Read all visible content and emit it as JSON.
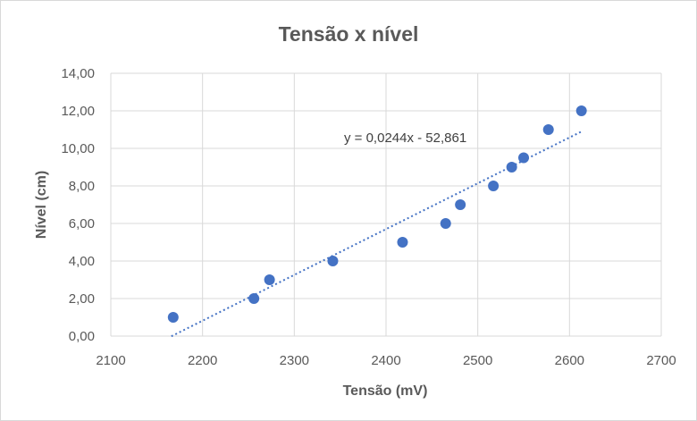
{
  "chart_data": {
    "type": "scatter",
    "title": "Tensão x nível",
    "xlabel": "Tensão (mV)",
    "ylabel": "Nível (cm)",
    "xlim": [
      2100,
      2700
    ],
    "ylim": [
      0,
      14
    ],
    "x_ticks": [
      "2100",
      "2200",
      "2300",
      "2400",
      "2500",
      "2600",
      "2700"
    ],
    "y_ticks": [
      "0,00",
      "2,00",
      "4,00",
      "6,00",
      "8,00",
      "10,00",
      "12,00",
      "14,00"
    ],
    "grid": true,
    "marker_color": "#4472c4",
    "points": [
      {
        "x": 2168,
        "y": 1
      },
      {
        "x": 2256,
        "y": 2
      },
      {
        "x": 2273,
        "y": 3
      },
      {
        "x": 2342,
        "y": 4
      },
      {
        "x": 2418,
        "y": 5
      },
      {
        "x": 2465,
        "y": 6
      },
      {
        "x": 2481,
        "y": 7
      },
      {
        "x": 2517,
        "y": 8
      },
      {
        "x": 2537,
        "y": 9
      },
      {
        "x": 2550,
        "y": 9.5
      },
      {
        "x": 2577,
        "y": 11
      },
      {
        "x": 2613,
        "y": 12
      }
    ],
    "trendline": {
      "type": "linear",
      "slope": 0.0244,
      "intercept": -52.861,
      "x_range": [
        2166,
        2613
      ],
      "equation_label": "y = 0,0244x - 52,861",
      "style": "dotted",
      "color": "#4472c4"
    }
  }
}
